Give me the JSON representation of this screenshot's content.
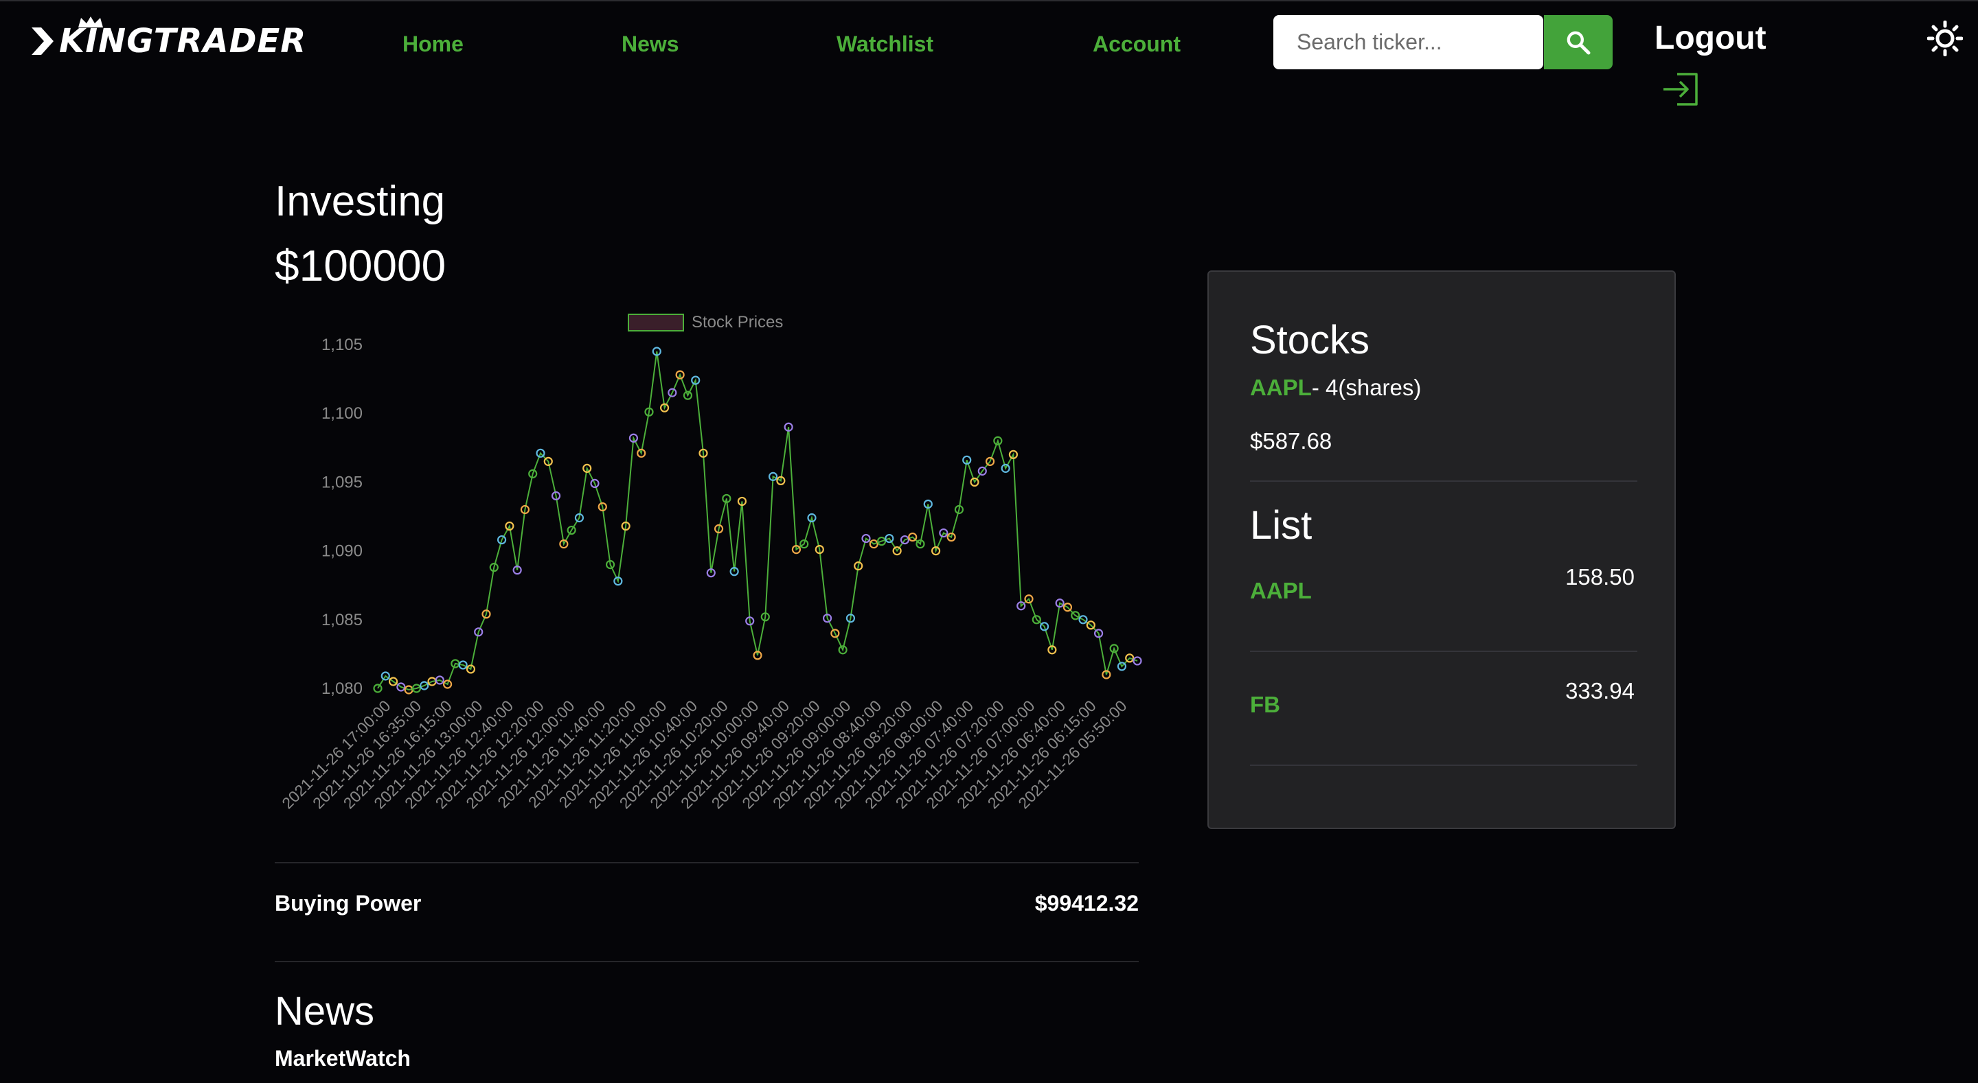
{
  "navbar": {
    "logo_text": "KINGTRADER",
    "links": [
      {
        "label": "Home"
      },
      {
        "label": "News"
      },
      {
        "label": "Watchlist"
      },
      {
        "label": "Account"
      }
    ],
    "search_placeholder": "Search ticker...",
    "search_icon": "search-icon",
    "logout_label": "Logout",
    "logout_icon": "login-arrow-icon",
    "theme_icon": "sun-icon",
    "accent_color": "#4caf3a"
  },
  "investing": {
    "title": "Investing",
    "value": "$100000"
  },
  "chart_data": {
    "type": "line",
    "legend": "Stock Prices",
    "ylim": [
      1080,
      1105
    ],
    "yticks": [
      "1,105",
      "1,100",
      "1,095",
      "1,090",
      "1,085",
      "1,080"
    ],
    "xtick_labels": [
      "2021-11-26 17:00:00",
      "2021-11-26 16:35:00",
      "2021-11-26 16:15:00",
      "2021-11-26 13:00:00",
      "2021-11-26 12:40:00",
      "2021-11-26 12:20:00",
      "2021-11-26 12:00:00",
      "2021-11-26 11:40:00",
      "2021-11-26 11:20:00",
      "2021-11-26 11:00:00",
      "2021-11-26 10:40:00",
      "2021-11-26 10:20:00",
      "2021-11-26 10:00:00",
      "2021-11-26 09:40:00",
      "2021-11-26 09:20:00",
      "2021-11-26 09:00:00",
      "2021-11-26 08:40:00",
      "2021-11-26 08:20:00",
      "2021-11-26 08:00:00",
      "2021-11-26 07:40:00",
      "2021-11-26 07:20:00",
      "2021-11-26 07:00:00",
      "2021-11-26 06:40:00",
      "2021-11-26 06:15:00",
      "2021-11-26 05:50:00"
    ],
    "values": [
      1080.0,
      1080.9,
      1080.5,
      1080.1,
      1079.9,
      1080.0,
      1080.2,
      1080.5,
      1080.6,
      1080.3,
      1081.8,
      1081.7,
      1081.4,
      1084.1,
      1085.4,
      1088.8,
      1090.8,
      1091.8,
      1088.6,
      1093.0,
      1095.6,
      1097.1,
      1096.5,
      1094.0,
      1090.5,
      1091.5,
      1092.4,
      1096.0,
      1094.9,
      1093.2,
      1089.0,
      1087.8,
      1091.8,
      1098.2,
      1097.1,
      1100.1,
      1104.5,
      1100.4,
      1101.5,
      1102.8,
      1101.3,
      1102.4,
      1097.1,
      1088.4,
      1091.6,
      1093.8,
      1088.5,
      1093.6,
      1084.9,
      1082.4,
      1085.2,
      1095.4,
      1095.1,
      1099.0,
      1090.1,
      1090.5,
      1092.4,
      1090.1,
      1085.1,
      1084.0,
      1082.8,
      1085.1,
      1088.9,
      1090.9,
      1090.5,
      1090.7,
      1090.9,
      1090.0,
      1090.8,
      1091.0,
      1090.5,
      1093.4,
      1090.0,
      1091.3,
      1091.0,
      1093.0,
      1096.6,
      1095.0,
      1095.8,
      1096.5,
      1098.0,
      1096.0,
      1097.0,
      1086.0,
      1086.5,
      1085.0,
      1084.5,
      1082.8,
      1086.2,
      1085.9,
      1085.3,
      1085.0,
      1084.6,
      1084.0,
      1081.0,
      1082.9,
      1081.6,
      1082.2,
      1082.0
    ],
    "line_color": "#4caf3a",
    "point_colors": [
      "#4caf3a",
      "#5fb8e0",
      "#f2c14e",
      "#9b7fe6",
      "#f0a848"
    ]
  },
  "buying_power": {
    "label": "Buying Power",
    "value": "$99412.32"
  },
  "news": {
    "title": "News",
    "source": "MarketWatch"
  },
  "stocks_card": {
    "stocks_title": "Stocks",
    "stock": {
      "ticker": "AAPL",
      "shares": "- 4(shares)",
      "value": "$587.68"
    },
    "list_title": "List",
    "list": [
      {
        "ticker": "AAPL",
        "price": "158.50"
      },
      {
        "ticker": "FB",
        "price": "333.94"
      }
    ]
  }
}
